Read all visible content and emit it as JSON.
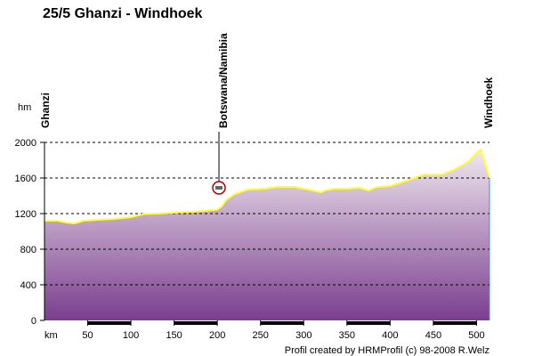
{
  "chart_data": {
    "type": "area",
    "title": "25/5 Ghanzi - Windhoek",
    "ylabel": "hm",
    "xlabel": "km",
    "xlim": [
      0,
      515
    ],
    "ylim": [
      0,
      2000
    ],
    "x_ticks": [
      50,
      100,
      150,
      200,
      250,
      300,
      350,
      400,
      450,
      500
    ],
    "y_ticks": [
      0,
      400,
      800,
      1200,
      1600,
      2000
    ],
    "grid": true,
    "series": [
      {
        "x": [
          0,
          15,
          25,
          35,
          45,
          60,
          80,
          100,
          115,
          130,
          150,
          170,
          185,
          200,
          205,
          210,
          220,
          235,
          255,
          270,
          290,
          305,
          320,
          325,
          335,
          350,
          365,
          375,
          385,
          400,
          410,
          425,
          440,
          460,
          475,
          490,
          500,
          505,
          510,
          515
        ],
        "values": [
          1120,
          1120,
          1100,
          1090,
          1120,
          1130,
          1140,
          1160,
          1195,
          1200,
          1210,
          1220,
          1230,
          1245,
          1280,
          1350,
          1420,
          1470,
          1480,
          1500,
          1500,
          1470,
          1440,
          1460,
          1480,
          1480,
          1490,
          1460,
          1500,
          1510,
          1540,
          1590,
          1640,
          1640,
          1700,
          1780,
          1880,
          1920,
          1760,
          1600
        ]
      }
    ],
    "places": [
      {
        "name": "Ghanzi",
        "km": 0
      },
      {
        "name": "Botswana/Namibia",
        "km": 205
      },
      {
        "name": "Windhoek",
        "km": 515
      }
    ],
    "border_marker_elevation": 1350,
    "credit": "Profil created by HRMProfil (c) 98-2008 R.Welz",
    "colors": {
      "line": "#ffff33",
      "fill_top": "#f0e8f0",
      "fill_bottom": "#7a3e8e",
      "grid": "#000000"
    }
  }
}
